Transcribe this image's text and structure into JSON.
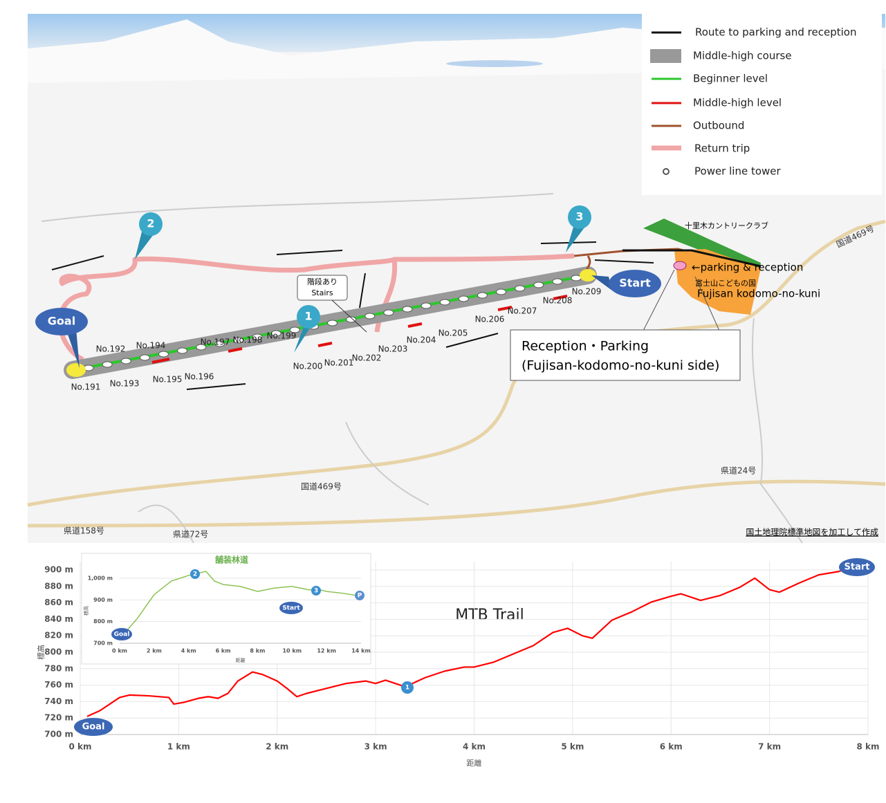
{
  "map": {
    "legend": [
      "Route to parking and reception",
      "Middle-high course",
      "Beginner level",
      "Middle-high level",
      "Outbound",
      "Return trip",
      "Power line tower"
    ],
    "towers": [
      "No.191",
      "No.192",
      "No.193",
      "No.194",
      "No.195",
      "No.196",
      "No.197",
      "No.198",
      "No.199",
      "No.200",
      "No.201",
      "No.202",
      "No.203",
      "No.204",
      "No.205",
      "No.206",
      "No.207",
      "No.208",
      "No.209"
    ],
    "pins": [
      "Goal",
      "Start",
      "1",
      "2",
      "3"
    ],
    "stairs": [
      "階段あり",
      "Stairs"
    ],
    "parking": "←parking  & reception",
    "kodomo_jp": "富士山こどもの国",
    "kodomo_en": "Fujisan kodomo-no-kuni",
    "golf": "十里木カントリークラブ",
    "callout": [
      "Reception・Parking",
      "(Fujisan-kodomo-no-kuni side)"
    ],
    "roads": [
      "国道469号",
      "国道469号",
      "県道24号",
      "県道158号",
      "県道72号"
    ],
    "credit": "国土地理院標準地図を加工して作成"
  },
  "chart_data": [
    {
      "type": "line",
      "title": "MTB Trail",
      "xlabel": "距離",
      "ylabel": "標高",
      "x": [
        0.07,
        0.2,
        0.4,
        0.5,
        0.7,
        0.9,
        0.95,
        1.05,
        1.2,
        1.3,
        1.4,
        1.5,
        1.6,
        1.75,
        1.85,
        2.0,
        2.1,
        2.2,
        2.3,
        2.5,
        2.7,
        2.9,
        3.0,
        3.1,
        3.3,
        3.5,
        3.7,
        3.9,
        4.0,
        4.2,
        4.4,
        4.6,
        4.8,
        4.95,
        5.1,
        5.2,
        5.4,
        5.6,
        5.8,
        6.0,
        6.1,
        6.3,
        6.5,
        6.7,
        6.85,
        7.0,
        7.1,
        7.3,
        7.5,
        7.7,
        7.75
      ],
      "series": [
        {
          "name": "MTB Trail",
          "color": "#ff0000",
          "values": [
            722,
            729,
            745,
            748,
            747,
            745,
            737,
            739,
            744,
            746,
            744,
            750,
            765,
            776,
            773,
            765,
            756,
            746,
            750,
            756,
            762,
            765,
            762,
            766,
            758,
            769,
            777,
            782,
            782,
            788,
            798,
            808,
            824,
            829,
            820,
            817,
            839,
            849,
            861,
            868,
            871,
            863,
            869,
            879,
            890,
            876,
            873,
            884,
            894,
            898,
            900
          ]
        }
      ],
      "annotations": [
        "Goal",
        "1",
        "Start"
      ],
      "xlim": [
        0,
        8
      ],
      "xticks": [
        {
          "value": 0,
          "label": "0 km"
        },
        {
          "value": 1,
          "label": "1 km"
        },
        {
          "value": 2,
          "label": "2 km"
        },
        {
          "value": 3,
          "label": "3 km"
        },
        {
          "value": 4,
          "label": "4 km"
        },
        {
          "value": 5,
          "label": "5 km"
        },
        {
          "value": 6,
          "label": "6 km"
        },
        {
          "value": 7,
          "label": "7 km"
        },
        {
          "value": 8,
          "label": "8 km"
        }
      ],
      "ylim": [
        700,
        900
      ],
      "yticks": [
        {
          "value": 700,
          "label": "700 m"
        },
        {
          "value": 720,
          "label": "720 m"
        },
        {
          "value": 740,
          "label": "740 m"
        },
        {
          "value": 760,
          "label": "760 m"
        },
        {
          "value": 780,
          "label": "780 m"
        },
        {
          "value": 800,
          "label": "800 m"
        },
        {
          "value": 820,
          "label": "820 m"
        },
        {
          "value": 840,
          "label": "840 m"
        },
        {
          "value": 860,
          "label": "860 m"
        },
        {
          "value": 880,
          "label": "880 m"
        },
        {
          "value": 900,
          "label": "900 m"
        }
      ],
      "grid": true
    },
    {
      "type": "line",
      "title": "舗装林道",
      "xlabel": "距離",
      "ylabel": "標高",
      "x": [
        0.3,
        1,
        2,
        3,
        4,
        4.4,
        5,
        5.5,
        6,
        7,
        8,
        9,
        10,
        11,
        11.5,
        12,
        13,
        14
      ],
      "series": [
        {
          "name": "舗装林道",
          "color": "#8cc152",
          "values": [
            748,
            812,
            924,
            987,
            1013,
            1019,
            1032,
            987,
            971,
            962,
            939,
            955,
            962,
            946,
            949,
            939,
            930,
            917
          ]
        }
      ],
      "annotations": [
        "Goal",
        "2",
        "3",
        "Start",
        "P"
      ],
      "xlim": [
        0,
        14
      ],
      "xticks": [
        {
          "value": 0,
          "label": "0 km"
        },
        {
          "value": 2,
          "label": "2 km"
        },
        {
          "value": 4,
          "label": "4 km"
        },
        {
          "value": 6,
          "label": "6 km"
        },
        {
          "value": 8,
          "label": "8 km"
        },
        {
          "value": 10,
          "label": "10 km"
        },
        {
          "value": 12,
          "label": "12 km"
        },
        {
          "value": 14,
          "label": "14 km"
        }
      ],
      "ylim": [
        700,
        1000
      ],
      "yticks": [
        {
          "value": 700,
          "label": "700 m"
        },
        {
          "value": 800,
          "label": "800 m"
        },
        {
          "value": 900,
          "label": "900 m"
        },
        {
          "value": 1000,
          "label": "1,000 m"
        }
      ],
      "grid": true
    }
  ]
}
